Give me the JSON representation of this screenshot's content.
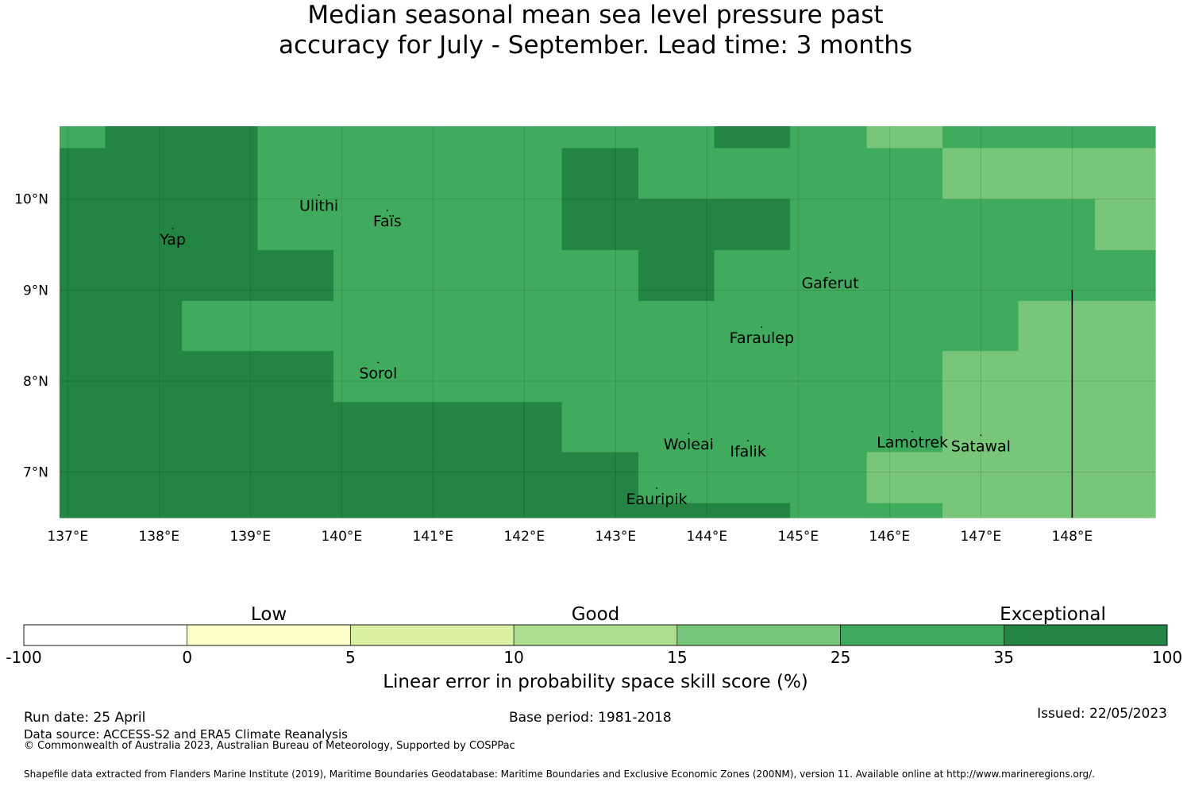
{
  "title_line1": "Median seasonal mean sea level pressure past",
  "title_line2": "accuracy for July - September. Lead time: 3 months",
  "chart_data": {
    "type": "heatmap",
    "x_ticks": [
      "137°E",
      "138°E",
      "139°E",
      "140°E",
      "141°E",
      "142°E",
      "143°E",
      "144°E",
      "145°E",
      "146°E",
      "147°E",
      "148°E"
    ],
    "y_ticks": [
      "10°N",
      "9°N",
      "8°N",
      "7°N"
    ],
    "lon_range": [
      136.91,
      148.91
    ],
    "lat_range": [
      6.5,
      10.8
    ],
    "grid_lon_edges": [
      136.91,
      137.41,
      138.25,
      139.08,
      139.91,
      140.75,
      141.58,
      142.41,
      143.25,
      144.08,
      144.91,
      145.75,
      146.58,
      147.41,
      148.25,
      148.91
    ],
    "grid_lat_edges": [
      10.8,
      10.56,
      10.0,
      9.44,
      8.88,
      8.33,
      7.77,
      7.22,
      6.66,
      6.5
    ],
    "skill_class_rows": [
      [
        5,
        6,
        6,
        5,
        5,
        5,
        5,
        5,
        5,
        6,
        5,
        4,
        5,
        5,
        5
      ],
      [
        6,
        6,
        6,
        5,
        5,
        5,
        5,
        6,
        5,
        5,
        5,
        5,
        4,
        4,
        4
      ],
      [
        6,
        6,
        6,
        5,
        5,
        5,
        5,
        6,
        6,
        6,
        5,
        5,
        5,
        5,
        4
      ],
      [
        6,
        6,
        6,
        6,
        5,
        5,
        5,
        5,
        6,
        5,
        5,
        5,
        5,
        5,
        5
      ],
      [
        6,
        6,
        5,
        5,
        5,
        5,
        5,
        5,
        5,
        5,
        5,
        5,
        5,
        4,
        4
      ],
      [
        6,
        6,
        6,
        6,
        5,
        5,
        5,
        5,
        5,
        5,
        5,
        5,
        4,
        4,
        4
      ],
      [
        6,
        6,
        6,
        6,
        6,
        6,
        6,
        5,
        5,
        5,
        5,
        5,
        4,
        4,
        4
      ],
      [
        6,
        6,
        6,
        6,
        6,
        6,
        6,
        6,
        5,
        5,
        5,
        4,
        4,
        4,
        4
      ],
      [
        6,
        6,
        6,
        6,
        6,
        6,
        6,
        6,
        6,
        6,
        5,
        5,
        4,
        4,
        4
      ]
    ],
    "places": [
      {
        "name": "Ulithi",
        "lon": 139.75,
        "lat": 9.87
      },
      {
        "name": "Faïs",
        "lon": 140.5,
        "lat": 9.7
      },
      {
        "name": "Yap",
        "lon": 138.15,
        "lat": 9.5
      },
      {
        "name": "Gaferut",
        "lon": 145.35,
        "lat": 9.02
      },
      {
        "name": "Faraulep",
        "lon": 144.6,
        "lat": 8.42
      },
      {
        "name": "Sorol",
        "lon": 140.4,
        "lat": 8.03
      },
      {
        "name": "Woleai",
        "lon": 143.8,
        "lat": 7.25
      },
      {
        "name": "Ifalik",
        "lon": 144.45,
        "lat": 7.17
      },
      {
        "name": "Lamotrek",
        "lon": 146.25,
        "lat": 7.27
      },
      {
        "name": "Satawal",
        "lon": 147.0,
        "lat": 7.23
      },
      {
        "name": "Eauripik",
        "lon": 143.45,
        "lat": 6.65
      }
    ],
    "boundary_line": {
      "lon": 148.0,
      "lat_from": 9.0,
      "lat_to": 6.5
    }
  },
  "colorbar": {
    "headers": [
      {
        "label": "Low",
        "at": 1.5
      },
      {
        "label": "Good",
        "at": 3.5
      },
      {
        "label": "Exceptional",
        "at": 6.3
      }
    ],
    "ticks": [
      "-100",
      "0",
      "5",
      "10",
      "15",
      "25",
      "35",
      "100"
    ],
    "colors": [
      "#ffffff",
      "#ffffcc",
      "#d9f0a3",
      "#addd8e",
      "#78c679",
      "#41ab5d",
      "#238443"
    ],
    "label": "Linear error in probability space skill score (%)"
  },
  "footer": {
    "run_date": "Run date: 25 April",
    "base_period": "Base period: 1981-2018",
    "issued": "Issued: 22/05/2023",
    "data_source": "Data source: ACCESS-S2 and ERA5 Climate Reanalysis",
    "copyright": "© Commonwealth of Australia 2023, Australian Bureau of Meteorology, Supported by COSPPac",
    "shapefile": "Shapefile data extracted from Flanders Marine Institute (2019), Maritime Boundaries Geodatabase: Maritime Boundaries and Exclusive Economic Zones (200NM), version 11. Available online at http://www.marineregions.org/."
  }
}
